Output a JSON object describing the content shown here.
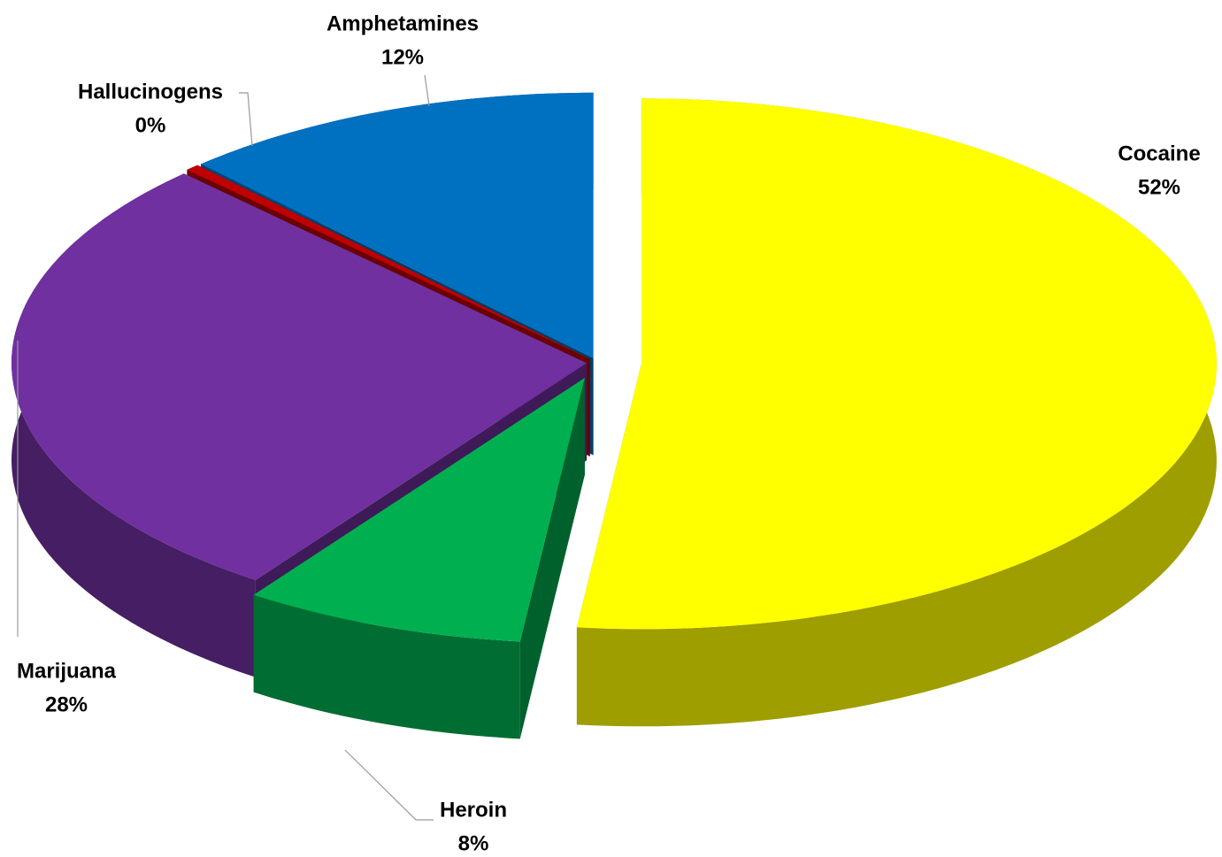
{
  "chart_data": {
    "type": "pie",
    "categories": [
      "Cocaine",
      "Heroin",
      "Marijuana",
      "Hallucinogens",
      "Amphetamines"
    ],
    "values": [
      52,
      8,
      28,
      0.4,
      12
    ],
    "value_labels": [
      "52%",
      "8%",
      "28%",
      "0%",
      "12%"
    ],
    "colors": [
      "#ffff00",
      "#00b050",
      "#7030a0",
      "#c00000",
      "#0070c0"
    ]
  }
}
